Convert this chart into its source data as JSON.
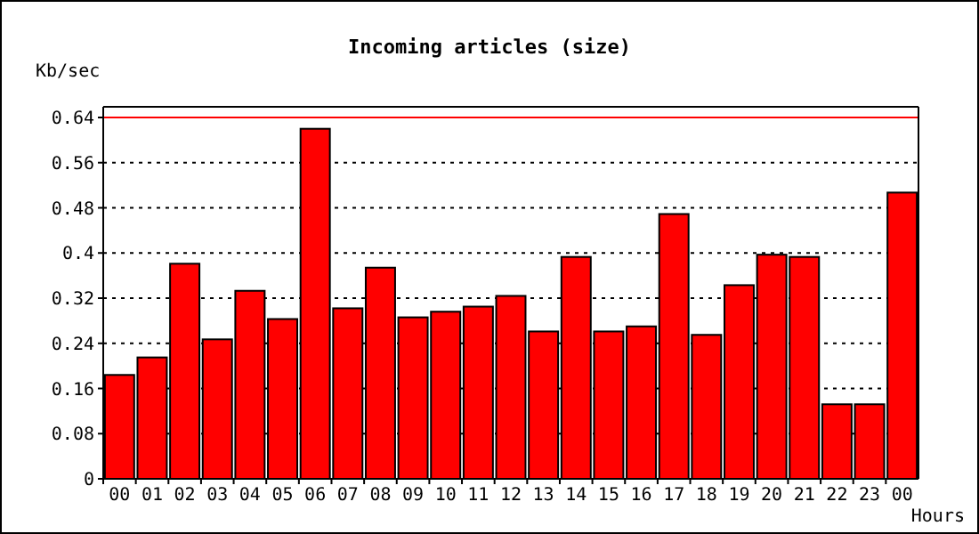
{
  "chart_data": {
    "type": "bar",
    "title": "Incoming articles (size)",
    "ylabel": "Kb/sec",
    "xlabel": "Hours",
    "categories": [
      "00",
      "01",
      "02",
      "03",
      "04",
      "05",
      "06",
      "07",
      "08",
      "09",
      "10",
      "11",
      "12",
      "13",
      "14",
      "15",
      "16",
      "17",
      "18",
      "19",
      "20",
      "21",
      "22",
      "23",
      "00"
    ],
    "values": [
      0.184,
      0.215,
      0.381,
      0.247,
      0.333,
      0.283,
      0.62,
      0.302,
      0.374,
      0.286,
      0.296,
      0.305,
      0.324,
      0.261,
      0.393,
      0.261,
      0.27,
      0.469,
      0.255,
      0.343,
      0.397,
      0.393,
      0.132,
      0.132,
      0.507
    ],
    "color": "#ff0000",
    "ylim": [
      0,
      0.64
    ],
    "yticks": [
      0,
      0.08,
      0.16,
      0.24,
      0.32,
      0.4,
      0.48,
      0.56,
      0.64
    ],
    "grid": "y",
    "ref_lines": [
      {
        "axis": "y",
        "value": 0.64,
        "color": "#ff0000"
      }
    ]
  }
}
